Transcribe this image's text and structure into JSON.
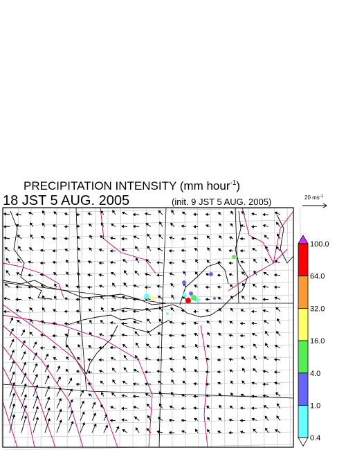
{
  "header": {
    "title": "PRECIPITATION INTENSITY (mm hour",
    "title_exponent": "-1",
    "title_close": ")",
    "time": "18 JST 5 AUG. 2005",
    "init": "(init. 9 JST 5 AUG. 2005)"
  },
  "vector_key": {
    "label": "20 ms",
    "exponent": "-1"
  },
  "colorbar": {
    "labels": [
      "100.0",
      "64.0",
      "32.0",
      "16.0",
      "4.0",
      "1.0",
      "0.4"
    ],
    "colors": [
      "#ff0000",
      "#ff9933",
      "#ffff66",
      "#55ee55",
      "#6666ff",
      "#66ffff"
    ],
    "over_color": "#cc33ff",
    "under_color": "#ffffff"
  }
}
